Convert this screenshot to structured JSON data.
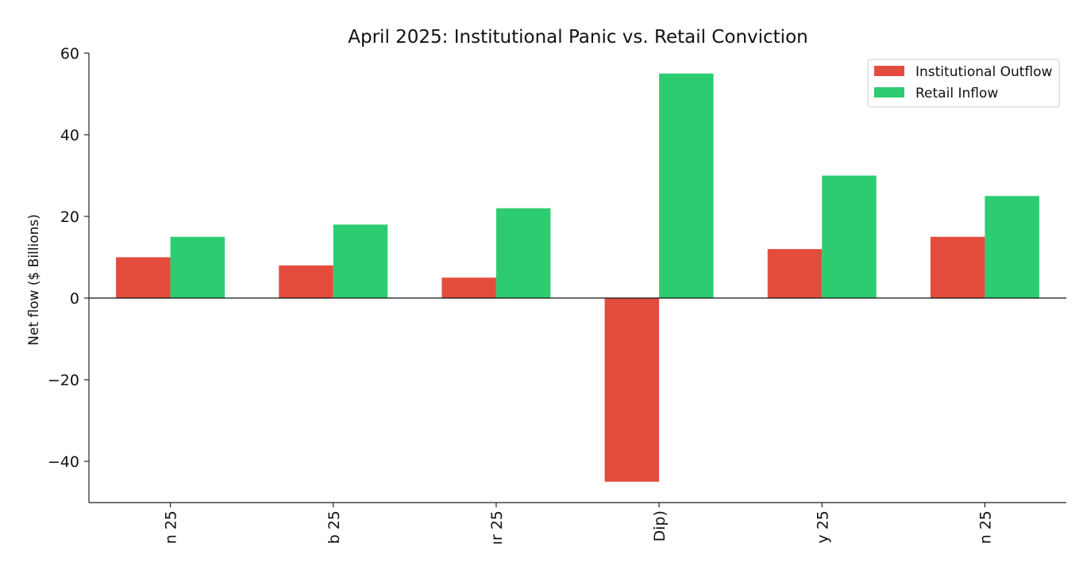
{
  "chart_data": {
    "type": "bar",
    "title": "April 2025: Institutional Panic vs. Retail Conviction",
    "xlabel": "",
    "ylabel": "Net flow ($ Billions)",
    "ylim": [
      -50,
      60
    ],
    "yticks": [
      -40,
      -20,
      0,
      20,
      40,
      60
    ],
    "ytick_labels": [
      "−40",
      "−20",
      "0",
      "20",
      "40",
      "60"
    ],
    "categories": [
      "n 25",
      "b 25",
      "ır 25",
      "Dip)",
      "y 25",
      "n 25"
    ],
    "series": [
      {
        "name": "Institutional Outflow",
        "color": "#e34c3c",
        "values": [
          10,
          8,
          5,
          -45,
          12,
          15
        ]
      },
      {
        "name": "Retail Inflow",
        "color": "#2ecc71",
        "values": [
          15,
          18,
          22,
          55,
          30,
          25
        ]
      }
    ],
    "grid": false,
    "legend_position": "top-right",
    "tick_label_rotation": "vertical, clipped at bottom edge"
  }
}
